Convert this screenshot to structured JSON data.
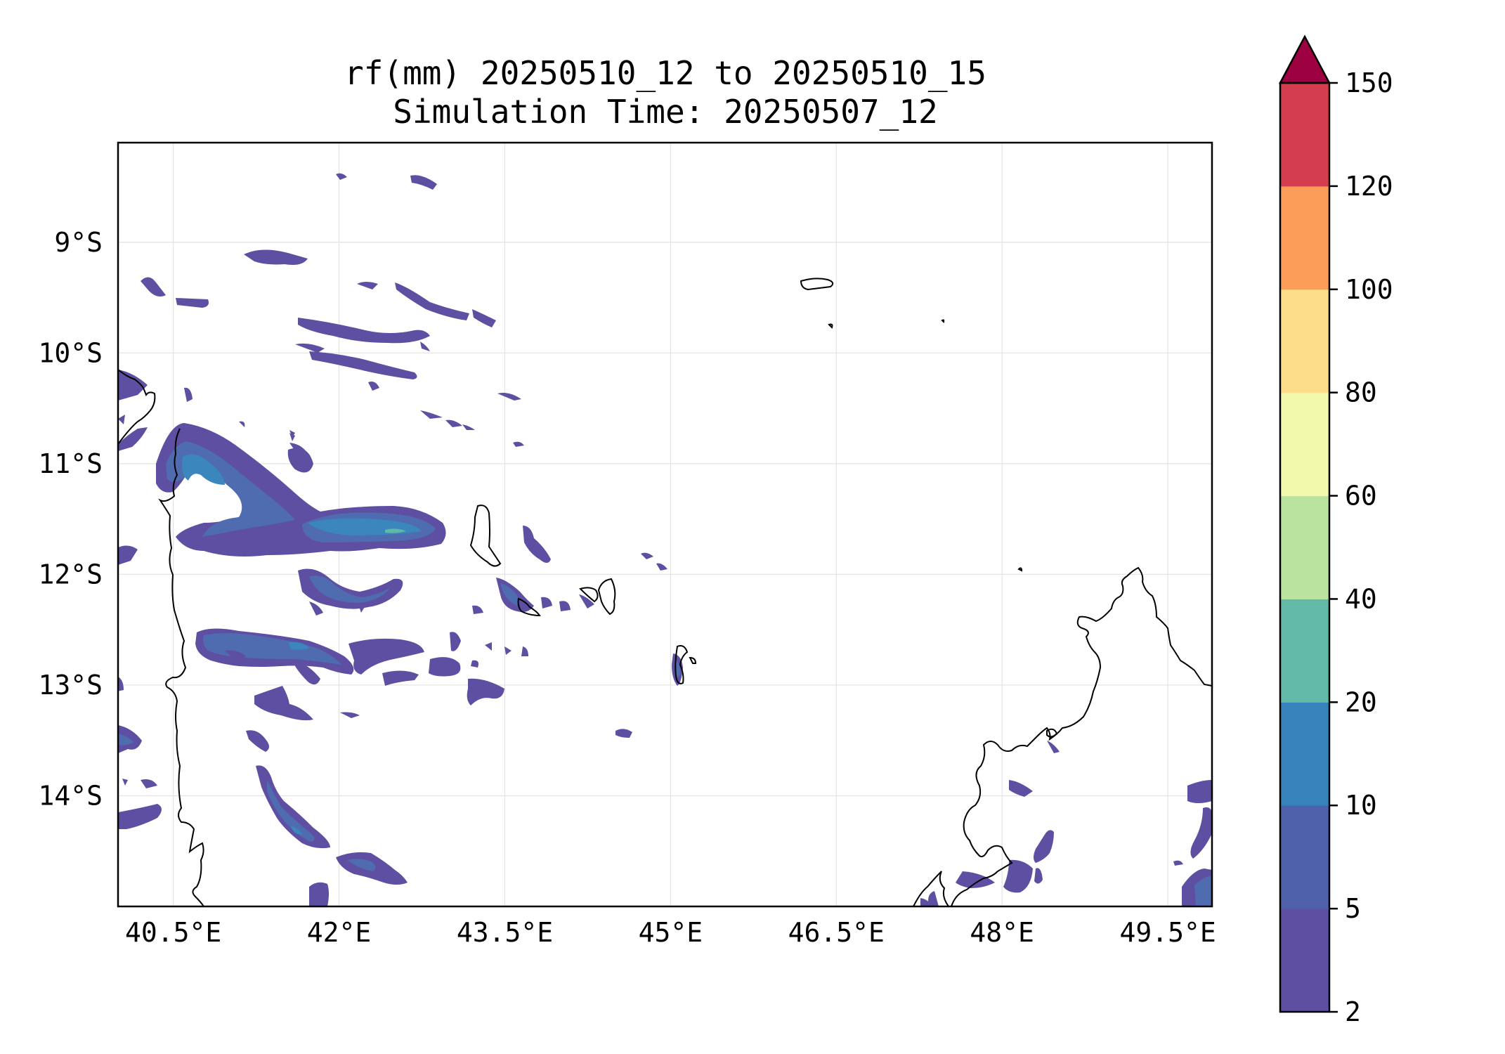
{
  "title": {
    "line1": "rf(mm) 20250510_12 to 20250510_15",
    "line2": "Simulation Time: 20250507_12"
  },
  "map": {
    "lon_range": [
      40.0,
      49.9
    ],
    "lat_range": [
      -15.0,
      -8.1
    ],
    "gridlines": true,
    "x_ticks": [
      {
        "value": 40.5,
        "label": "40.5°E"
      },
      {
        "value": 42.0,
        "label": "42°E"
      },
      {
        "value": 43.5,
        "label": "43.5°E"
      },
      {
        "value": 45.0,
        "label": "45°E"
      },
      {
        "value": 46.5,
        "label": "46.5°E"
      },
      {
        "value": 48.0,
        "label": "48°E"
      },
      {
        "value": 49.5,
        "label": "49.5°E"
      }
    ],
    "y_ticks": [
      {
        "value": -9,
        "label": "9°S"
      },
      {
        "value": -10,
        "label": "10°S"
      },
      {
        "value": -11,
        "label": "11°S"
      },
      {
        "value": -12,
        "label": "12°S"
      },
      {
        "value": -13,
        "label": "13°S"
      },
      {
        "value": -14,
        "label": "14°S"
      }
    ],
    "rain_colors": {
      "c1": "#5e4fa2",
      "c2": "#4f6cb0",
      "c3": "#3a86bd",
      "c4": "#5fb8a8"
    }
  },
  "colorbar": {
    "levels": [
      2,
      5,
      10,
      20,
      40,
      60,
      80,
      100,
      120,
      150
    ],
    "labels": [
      "2",
      "5",
      "10",
      "20",
      "40",
      "60",
      "80",
      "100",
      "120",
      "150"
    ],
    "colors": [
      "#5e4fa2",
      "#4f61aa",
      "#3682ba",
      "#62bba9",
      "#bae3a0",
      "#f2f9ac",
      "#fcde8a",
      "#f99d59",
      "#d43d4f"
    ],
    "extend_color": "#9e0142",
    "extend": "max"
  }
}
